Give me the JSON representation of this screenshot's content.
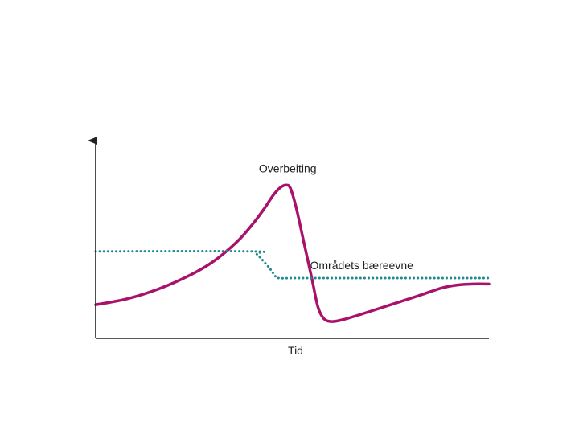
{
  "chart_data": {
    "type": "line",
    "title": "",
    "xlabel": "Tid",
    "ylabel": "",
    "grid": false,
    "legend": "none",
    "xlim": [
      0,
      100
    ],
    "ylim": [
      0,
      100
    ],
    "series": [
      {
        "name": "Overbeiting",
        "color": "#a8126b",
        "style": "solid",
        "points": [
          [
            0,
            17
          ],
          [
            8,
            20
          ],
          [
            16,
            25
          ],
          [
            24,
            32
          ],
          [
            30,
            39
          ],
          [
            36,
            49
          ],
          [
            40,
            58
          ],
          [
            43,
            66
          ],
          [
            45,
            72
          ],
          [
            46.5,
            75.5
          ],
          [
            47.5,
            77
          ],
          [
            48.5,
            77.5
          ],
          [
            49.5,
            76
          ],
          [
            51,
            66
          ],
          [
            53,
            48
          ],
          [
            55,
            30
          ],
          [
            56.5,
            16
          ],
          [
            58,
            10
          ],
          [
            60,
            8.5
          ],
          [
            63,
            9.5
          ],
          [
            68,
            12.5
          ],
          [
            75,
            17
          ],
          [
            82,
            21.5
          ],
          [
            88,
            25.5
          ],
          [
            92,
            27
          ],
          [
            96,
            27.5
          ],
          [
            100,
            27.5
          ]
        ]
      },
      {
        "name": "Områdets bæreevne",
        "color": "#1f8a8f",
        "style": "dotted",
        "points": [
          [
            0,
            44
          ],
          [
            39.5,
            44
          ],
          [
            41,
            42.5
          ],
          [
            44,
            36
          ],
          [
            45.5,
            32
          ],
          [
            46.5,
            30.5
          ],
          [
            52,
            30.5
          ],
          [
            76,
            30.5
          ],
          [
            100,
            30.5
          ]
        ]
      }
    ],
    "annotations": [
      {
        "text": "Overbeiting",
        "x": 41.5,
        "y": 84,
        "anchor": "start"
      },
      {
        "text": "Områdets bæreevne",
        "x": 54.5,
        "y": 35,
        "anchor": "start"
      }
    ]
  }
}
